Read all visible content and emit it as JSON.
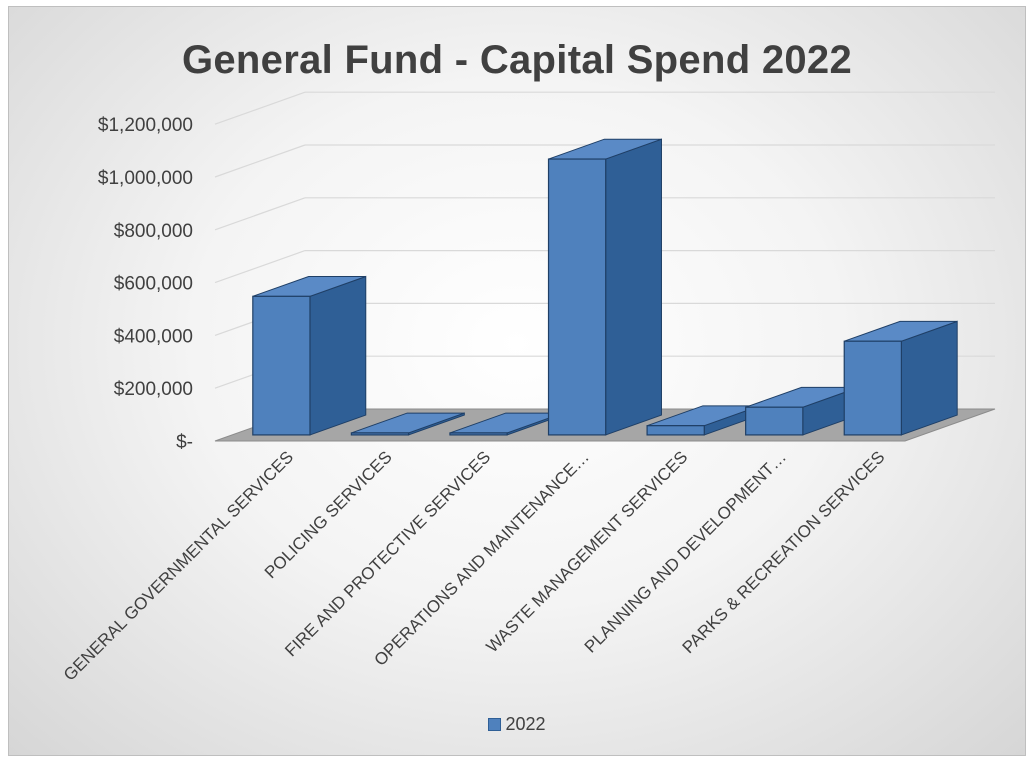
{
  "chart_data": {
    "type": "bar",
    "title": "General  Fund - Capital Spend 2022",
    "categories": [
      "GENERAL GOVERNMENTAL SERVICES",
      "POLICING SERVICES",
      "FIRE AND PROTECTIVE SERVICES",
      "OPERATIONS AND MAINTENANCE…",
      "WASTE MANAGEMENT SERVICES",
      "PLANNING AND DEVELOPMENT…",
      "PARKS & RECREATION SERVICES"
    ],
    "series": [
      {
        "name": "2022",
        "values": [
          525000,
          0,
          0,
          1045000,
          35000,
          105000,
          355000
        ]
      }
    ],
    "y_ticks": [
      "$-",
      "$200,000",
      "$400,000",
      "$600,000",
      "$800,000",
      "$1,000,000",
      "$1,200,000"
    ],
    "ylim": [
      0,
      1200000
    ],
    "grid": true,
    "legend_position": "bottom",
    "colors": {
      "bar": "#4f81bd",
      "bar_side": "#2f5f96",
      "bar_top": "#5a8ac6",
      "floor": "#a6a6a6"
    }
  }
}
